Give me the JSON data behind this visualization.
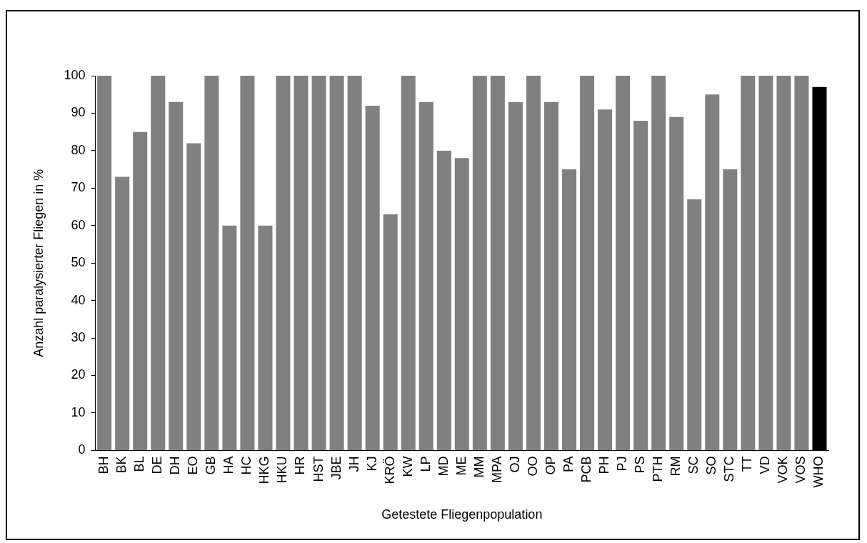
{
  "chart_data": {
    "type": "bar",
    "xlabel": "Getestete Fliegenpopulation",
    "ylabel": "Anzahl paralysierter Fliegen in %",
    "categories": [
      "BH",
      "BK",
      "BL",
      "DE",
      "DH",
      "EO",
      "GB",
      "HA",
      "HC",
      "HKG",
      "HKU",
      "HR",
      "HST",
      "JBE",
      "JH",
      "KJ",
      "KRÖ",
      "KW",
      "LP",
      "MD",
      "ME",
      "MM",
      "MPA",
      "OJ",
      "OO",
      "OP",
      "PA",
      "PCB",
      "PH",
      "PJ",
      "PS",
      "PTH",
      "RM",
      "SC",
      "SO",
      "STC",
      "TT",
      "VD",
      "VOK",
      "VOS",
      "WHO"
    ],
    "values": [
      100,
      73,
      85,
      100,
      93,
      82,
      100,
      60,
      100,
      60,
      100,
      100,
      100,
      100,
      100,
      92,
      63,
      100,
      93,
      80,
      78,
      100,
      100,
      93,
      100,
      93,
      75,
      100,
      91,
      100,
      88,
      100,
      89,
      67,
      95,
      75,
      100,
      100,
      100,
      100,
      97
    ],
    "colors": [
      "#808080",
      "#808080",
      "#808080",
      "#808080",
      "#808080",
      "#808080",
      "#808080",
      "#808080",
      "#808080",
      "#808080",
      "#808080",
      "#808080",
      "#808080",
      "#808080",
      "#808080",
      "#808080",
      "#808080",
      "#808080",
      "#808080",
      "#808080",
      "#808080",
      "#808080",
      "#808080",
      "#808080",
      "#808080",
      "#808080",
      "#808080",
      "#808080",
      "#808080",
      "#808080",
      "#808080",
      "#808080",
      "#808080",
      "#808080",
      "#808080",
      "#808080",
      "#808080",
      "#808080",
      "#808080",
      "#808080",
      "#000000"
    ],
    "ylim": [
      0,
      100
    ],
    "yticks": [
      0,
      10,
      20,
      30,
      40,
      50,
      60,
      70,
      80,
      90,
      100
    ],
    "grid": false,
    "legend": false
  }
}
